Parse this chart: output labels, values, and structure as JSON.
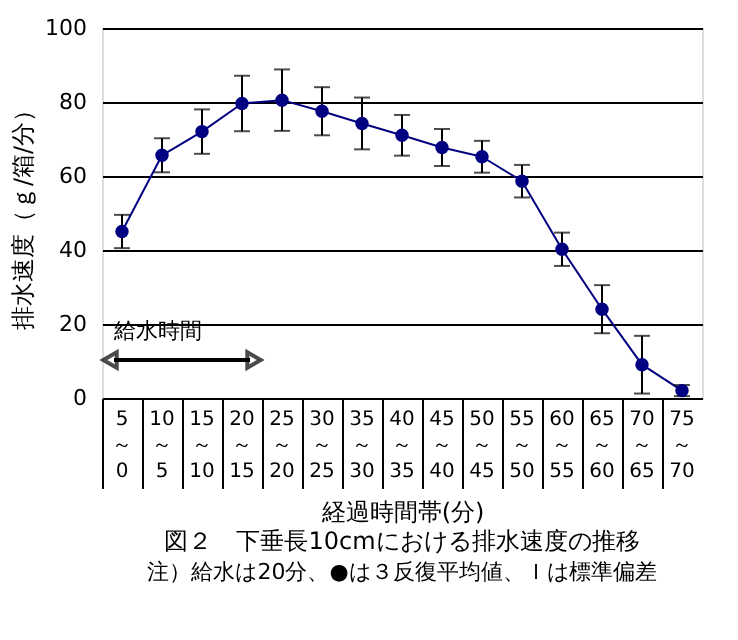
{
  "chart_data": {
    "type": "line",
    "title": "図２　下垂長10cmにおける排水速度の推移",
    "xlabel": "経過時間帯(分)",
    "ylabel": "排水速度（ｇ/箱/分）",
    "annotations": [
      "給水時間",
      "注）給水は20分、●は３反復平均値、Ｉは標準偏差"
    ],
    "categories": [
      "5\n～\n0",
      "10\n～\n5",
      "15\n～\n10",
      "20\n～\n15",
      "25\n～\n20",
      "30\n～\n25",
      "35\n～\n30",
      "40\n～\n35",
      "45\n～\n40",
      "50\n～\n45",
      "55\n～\n50",
      "60\n～\n55",
      "65\n～\n60",
      "70\n～\n65",
      "75\n～\n70"
    ],
    "series": [
      {
        "color": "#000080",
        "values": [
          45,
          65.6,
          72,
          79.6,
          80.5,
          77.5,
          74.2,
          71,
          67.7,
          65.2,
          58.6,
          40.2,
          24,
          9,
          2
        ],
        "errors": [
          4.5,
          4.6,
          6,
          7.5,
          8.3,
          6.5,
          7,
          5.5,
          5,
          4.3,
          4.4,
          4.5,
          6.5,
          7.8,
          1.5
        ]
      }
    ],
    "ylim": [
      0,
      100
    ],
    "yticks": [
      0,
      20,
      40,
      60,
      80,
      100
    ],
    "grid": "y",
    "marker": "circle",
    "line_style": "solid"
  }
}
